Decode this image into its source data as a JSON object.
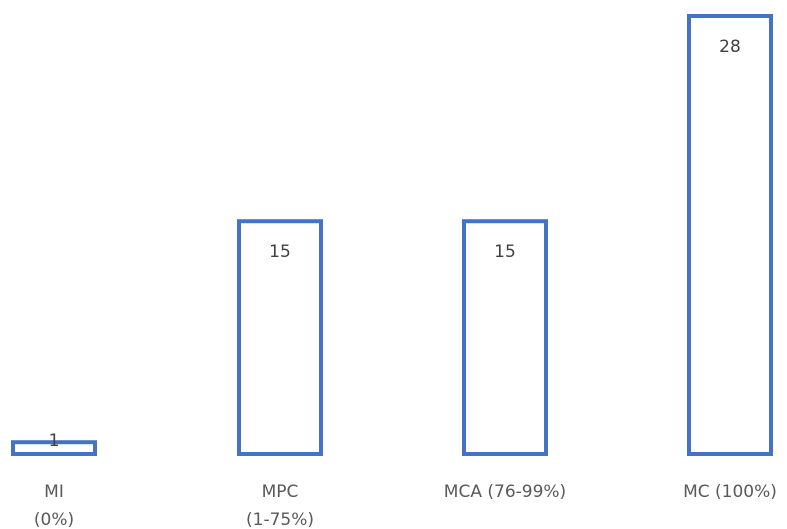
{
  "chart_data": {
    "type": "bar",
    "categories": [
      [
        "MI",
        "(0%)"
      ],
      [
        "MPC",
        "(1-75%)"
      ],
      [
        "MCA (76-99%)"
      ],
      [
        "MC (100%)"
      ]
    ],
    "values": [
      1,
      15,
      15,
      28
    ],
    "data_labels": [
      "1",
      "15",
      "15",
      "28"
    ],
    "ylim": [
      0,
      28
    ],
    "grid": false,
    "legend": "none",
    "colors": {
      "bar_outline": "#4472c4",
      "bar_fill": "#ffffff",
      "data_label": "#404040",
      "category_label": "#595959"
    }
  }
}
